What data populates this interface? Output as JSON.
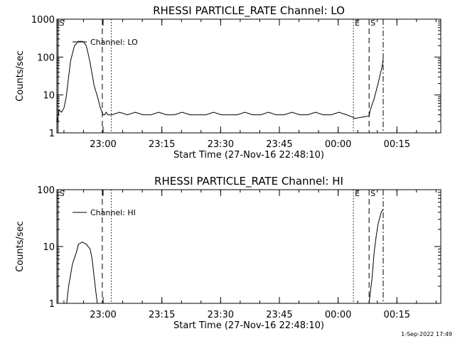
{
  "footer": {
    "timestamp": "1-Sep-2022 17:49"
  },
  "chart_data": [
    {
      "type": "line",
      "title": "RHESSI PARTICLE_RATE Channel: LO",
      "xlabel": "Start Time (27-Nov-16 22:48:10)",
      "ylabel": "Counts/sec",
      "yscale": "log",
      "xrange_minutes_after_start": [
        0,
        98
      ],
      "ylim": [
        1,
        1000
      ],
      "xticks": [
        {
          "label": "23:00",
          "t": 11.8
        },
        {
          "label": "23:15",
          "t": 26.8
        },
        {
          "label": "23:30",
          "t": 41.8
        },
        {
          "label": "23:45",
          "t": 56.8
        },
        {
          "label": "00:00",
          "t": 71.8
        },
        {
          "label": "00:15",
          "t": 86.8
        }
      ],
      "yticks": [
        {
          "label": "1",
          "v": 1
        },
        {
          "label": "10",
          "v": 10
        },
        {
          "label": "100",
          "v": 100
        },
        {
          "label": "1000",
          "v": 1000
        }
      ],
      "legend": {
        "label": "Channel: LO",
        "position": "top-left"
      },
      "markers": [
        {
          "label": "S",
          "t": 0.3,
          "style": "solid"
        },
        {
          "label": "",
          "t": 11.6,
          "style": "dashed"
        },
        {
          "label": "",
          "t": 13.9,
          "style": "dotted"
        },
        {
          "label": "E",
          "t": 75.7,
          "style": "dotted"
        },
        {
          "label": "S",
          "t": 79.7,
          "style": "dashed"
        },
        {
          "label": "",
          "t": 83.3,
          "style": "dashdot"
        }
      ],
      "series": [
        {
          "name": "",
          "x": [
            0,
            0.6,
            1.2,
            1.8,
            2.4,
            3,
            3.5,
            4.5,
            5.5,
            6.5,
            7,
            7.5,
            8,
            8.5,
            9,
            9.5,
            10,
            10.5,
            11,
            11.3,
            11.8,
            12.2,
            12.6,
            13,
            13.5,
            14,
            16,
            18,
            20,
            22,
            24,
            26,
            28,
            30,
            32,
            34,
            36,
            38,
            40,
            42,
            44,
            46,
            48,
            50,
            52,
            54,
            56,
            58,
            60,
            62,
            64,
            66,
            68,
            70,
            72,
            74,
            75.5,
            76,
            78,
            79.7,
            80,
            81,
            82,
            83,
            83.3
          ],
          "y": [
            1.8,
            4,
            3.5,
            4.5,
            9,
            30,
            80,
            200,
            260,
            260,
            240,
            200,
            120,
            70,
            35,
            18,
            12,
            8,
            5,
            4,
            3,
            3,
            3.5,
            3,
            3,
            3,
            3.5,
            3,
            3.5,
            3,
            3,
            3.5,
            3,
            3,
            3.5,
            3,
            3,
            3,
            3.5,
            3,
            3,
            3,
            3.5,
            3,
            3,
            3.5,
            3,
            3,
            3.5,
            3,
            3,
            3.5,
            3,
            3,
            3.5,
            3,
            2.6,
            2.4,
            2.6,
            2.8,
            4,
            8,
            20,
            55,
            90
          ]
        }
      ]
    },
    {
      "type": "line",
      "title": "RHESSI PARTICLE_RATE Channel: HI",
      "xlabel": "Start Time (27-Nov-16 22:48:10)",
      "ylabel": "Counts/sec",
      "yscale": "log",
      "xrange_minutes_after_start": [
        0,
        98
      ],
      "ylim": [
        1,
        100
      ],
      "xticks": [
        {
          "label": "23:00",
          "t": 11.8
        },
        {
          "label": "23:15",
          "t": 26.8
        },
        {
          "label": "23:30",
          "t": 41.8
        },
        {
          "label": "23:45",
          "t": 56.8
        },
        {
          "label": "00:00",
          "t": 71.8
        },
        {
          "label": "00:15",
          "t": 86.8
        }
      ],
      "yticks": [
        {
          "label": "1",
          "v": 1
        },
        {
          "label": "10",
          "v": 10
        },
        {
          "label": "100",
          "v": 100
        }
      ],
      "legend": {
        "label": "Channel: HI",
        "position": "top-left"
      },
      "markers": [
        {
          "label": "S",
          "t": 0.3,
          "style": "solid"
        },
        {
          "label": "",
          "t": 11.6,
          "style": "dashed"
        },
        {
          "label": "",
          "t": 13.9,
          "style": "dotted"
        },
        {
          "label": "E",
          "t": 75.7,
          "style": "dotted"
        },
        {
          "label": "S",
          "t": 79.7,
          "style": "dashed"
        },
        {
          "label": "",
          "t": 83.3,
          "style": "dashdot"
        }
      ],
      "series": [
        {
          "name": "",
          "x": [
            2.5,
            3,
            4,
            5,
            5.5,
            6.5,
            7.5,
            8.5,
            9,
            9.5,
            10,
            10.3
          ],
          "y": [
            1,
            2,
            5,
            8,
            11,
            12,
            11,
            9,
            6,
            3,
            1.5,
            1
          ]
        },
        {
          "name": "",
          "x": [
            79.7,
            80.5,
            81,
            81.5,
            82,
            82.8,
            83.3
          ],
          "y": [
            1,
            3,
            8,
            15,
            25,
            40,
            45
          ]
        }
      ]
    }
  ]
}
